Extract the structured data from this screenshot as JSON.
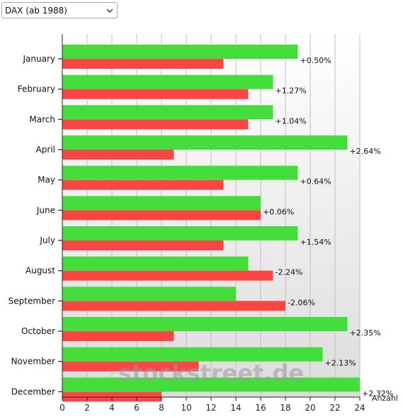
{
  "index_select": {
    "selected": "DAX (ab 1988)"
  },
  "watermark": "stockstreet.de",
  "colors": {
    "up": "#44dd3b",
    "down": "#fa4545",
    "grid": "#bfbfbf",
    "axis": "#222222"
  },
  "icons": {
    "dropdown": "chevron-down-icon"
  },
  "chart_data": {
    "type": "bar",
    "orientation": "horizontal",
    "xlabel": "Anzahl",
    "xlim": [
      0,
      24
    ],
    "x_ticks": [
      0,
      2,
      4,
      6,
      8,
      10,
      12,
      14,
      16,
      18,
      20,
      22,
      24
    ],
    "grid": true,
    "categories": [
      "January",
      "February",
      "March",
      "April",
      "May",
      "June",
      "July",
      "August",
      "September",
      "October",
      "November",
      "December"
    ],
    "series": [
      {
        "values": [
          19,
          17,
          17,
          23,
          19,
          16,
          19,
          15,
          14,
          23,
          21,
          24
        ]
      },
      {
        "values": [
          13,
          15,
          15,
          9,
          13,
          16,
          13,
          17,
          18,
          9,
          11,
          8
        ]
      }
    ],
    "annotations": [
      "+0.50%",
      "+1.27%",
      "+1.04%",
      "+2.64%",
      "+0.64%",
      "+0.06%",
      "+1.54%",
      "-2.24%",
      "-2.06%",
      "+2.35%",
      "+2.13%",
      "+2.32%"
    ]
  }
}
